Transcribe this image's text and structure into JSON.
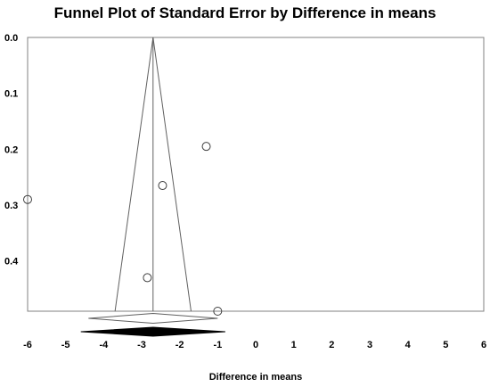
{
  "chart_data": {
    "type": "scatter",
    "title": "Funnel Plot of Standard Error by Difference in means",
    "xlabel": "Difference in means",
    "ylabel": "",
    "xlim": [
      -6,
      6
    ],
    "ylim": [
      0,
      0.49
    ],
    "y_inverted": true,
    "x_ticks": [
      "-6",
      "-5",
      "-4",
      "-3",
      "-2",
      "-1",
      "0",
      "1",
      "2",
      "3",
      "4",
      "5",
      "6"
    ],
    "y_ticks": [
      "0.0",
      "0.1",
      "0.2",
      "0.3",
      "0.4"
    ],
    "points": [
      {
        "x": -6.0,
        "y": 0.29
      },
      {
        "x": -1.3,
        "y": 0.195
      },
      {
        "x": -2.45,
        "y": 0.265
      },
      {
        "x": -2.85,
        "y": 0.43
      },
      {
        "x": -1.0,
        "y": 0.49
      }
    ],
    "pooled_estimate": -2.7,
    "funnel": {
      "apex": {
        "x": -2.7,
        "y": 0.0
      },
      "bottom_left": {
        "x": -3.7,
        "y": 0.49
      },
      "bottom_right": {
        "x": -1.7,
        "y": 0.49
      }
    },
    "summary_diamonds": [
      {
        "center": -2.7,
        "lower": -4.4,
        "upper": -1.0,
        "filled": false
      },
      {
        "center": -2.7,
        "lower": -4.6,
        "upper": -0.8,
        "filled": true
      }
    ],
    "colors": {
      "axis": "#808080",
      "line": "#606060",
      "point": "#404040",
      "diamond_fill": "#000000",
      "open_diamond_stroke": "#606060"
    }
  }
}
